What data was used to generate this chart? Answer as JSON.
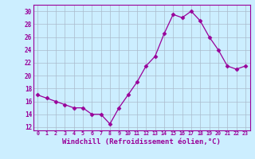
{
  "x": [
    0,
    1,
    2,
    3,
    4,
    5,
    6,
    7,
    8,
    9,
    10,
    11,
    12,
    13,
    14,
    15,
    16,
    17,
    18,
    19,
    20,
    21,
    22,
    23
  ],
  "y": [
    17,
    16.5,
    16,
    15.5,
    15,
    15,
    14,
    14,
    12.5,
    15,
    17,
    19,
    21.5,
    23,
    26.5,
    29.5,
    29,
    30,
    28.5,
    26,
    24,
    21.5,
    21,
    21.5
  ],
  "line_color": "#990099",
  "marker": "D",
  "marker_size": 2.5,
  "bg_color": "#cceeff",
  "grid_color": "#aabbcc",
  "xlabel": "Windchill (Refroidissement éolien,°C)",
  "xlabel_fontsize": 6.5,
  "xtick_labels": [
    "0",
    "1",
    "2",
    "3",
    "4",
    "5",
    "6",
    "7",
    "8",
    "9",
    "10",
    "11",
    "12",
    "13",
    "14",
    "15",
    "16",
    "17",
    "18",
    "19",
    "20",
    "21",
    "22",
    "23"
  ],
  "ytick_values": [
    12,
    14,
    16,
    18,
    20,
    22,
    24,
    26,
    28,
    30
  ],
  "ylim": [
    11.5,
    31.0
  ],
  "xlim": [
    -0.5,
    23.5
  ]
}
